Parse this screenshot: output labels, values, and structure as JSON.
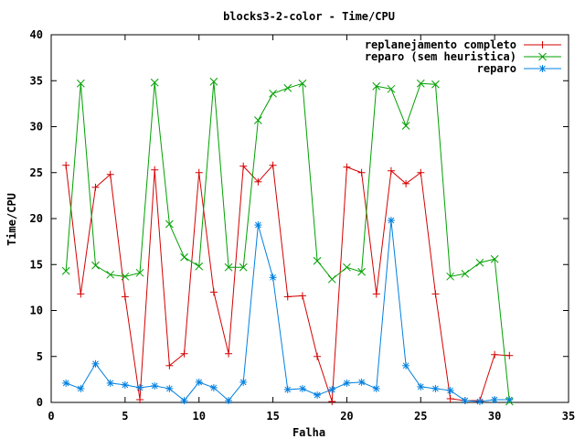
{
  "chart_data": {
    "type": "line",
    "title": "blocks3-2-color - Time/CPU",
    "xlabel": "Falha",
    "ylabel": "Time/CPU",
    "xlim": [
      0,
      35
    ],
    "ylim": [
      0,
      40
    ],
    "xticks": [
      0,
      5,
      10,
      15,
      20,
      25,
      30,
      35
    ],
    "yticks": [
      0,
      5,
      10,
      15,
      20,
      25,
      30,
      35,
      40
    ],
    "grid": false,
    "legend_position": "top-right",
    "series": [
      {
        "name": "replanejamento completo",
        "color": "#d40000",
        "marker": "plus",
        "x": [
          1,
          2,
          3,
          4,
          5,
          6,
          7,
          8,
          9,
          10,
          11,
          12,
          13,
          14,
          15,
          16,
          17,
          18,
          19,
          20,
          21,
          22,
          23,
          24,
          25,
          26,
          27,
          28,
          29,
          30,
          31
        ],
        "y": [
          25.8,
          11.8,
          23.4,
          24.8,
          11.5,
          0.3,
          25.3,
          4.0,
          5.3,
          25.0,
          12.0,
          5.3,
          25.7,
          24.0,
          25.8,
          11.5,
          11.6,
          5.0,
          0.1,
          25.6,
          25.0,
          11.8,
          25.2,
          23.8,
          25.0,
          11.8,
          0.4,
          0.2,
          0.2,
          5.2,
          5.1
        ]
      },
      {
        "name": "reparo (sem heuristica)",
        "color": "#00a000",
        "marker": "cross",
        "x": [
          1,
          2,
          3,
          4,
          5,
          6,
          7,
          8,
          9,
          10,
          11,
          12,
          13,
          14,
          15,
          16,
          17,
          18,
          19,
          20,
          21,
          22,
          23,
          24,
          25,
          26,
          27,
          28,
          29,
          30,
          31
        ],
        "y": [
          14.3,
          34.7,
          14.9,
          13.9,
          13.7,
          14.1,
          34.8,
          19.4,
          15.8,
          14.8,
          34.9,
          14.7,
          14.7,
          30.7,
          33.6,
          34.2,
          34.7,
          15.4,
          13.4,
          14.7,
          14.2,
          34.4,
          34.1,
          30.1,
          34.7,
          34.6,
          13.7,
          14.0,
          15.2,
          15.6,
          0.1
        ]
      },
      {
        "name": "reparo",
        "color": "#0080e0",
        "marker": "star",
        "x": [
          1,
          2,
          3,
          4,
          5,
          6,
          7,
          8,
          9,
          10,
          11,
          12,
          13,
          14,
          15,
          16,
          17,
          18,
          19,
          20,
          21,
          22,
          23,
          24,
          25,
          26,
          27,
          28,
          29,
          30,
          31
        ],
        "y": [
          2.1,
          1.5,
          4.2,
          2.1,
          1.9,
          1.6,
          1.8,
          1.5,
          0.2,
          2.2,
          1.6,
          0.2,
          2.2,
          19.3,
          13.6,
          1.4,
          1.5,
          0.8,
          1.4,
          2.1,
          2.2,
          1.5,
          19.8,
          4.0,
          1.7,
          1.5,
          1.3,
          0.2,
          0.1,
          0.3,
          0.3
        ]
      }
    ]
  }
}
